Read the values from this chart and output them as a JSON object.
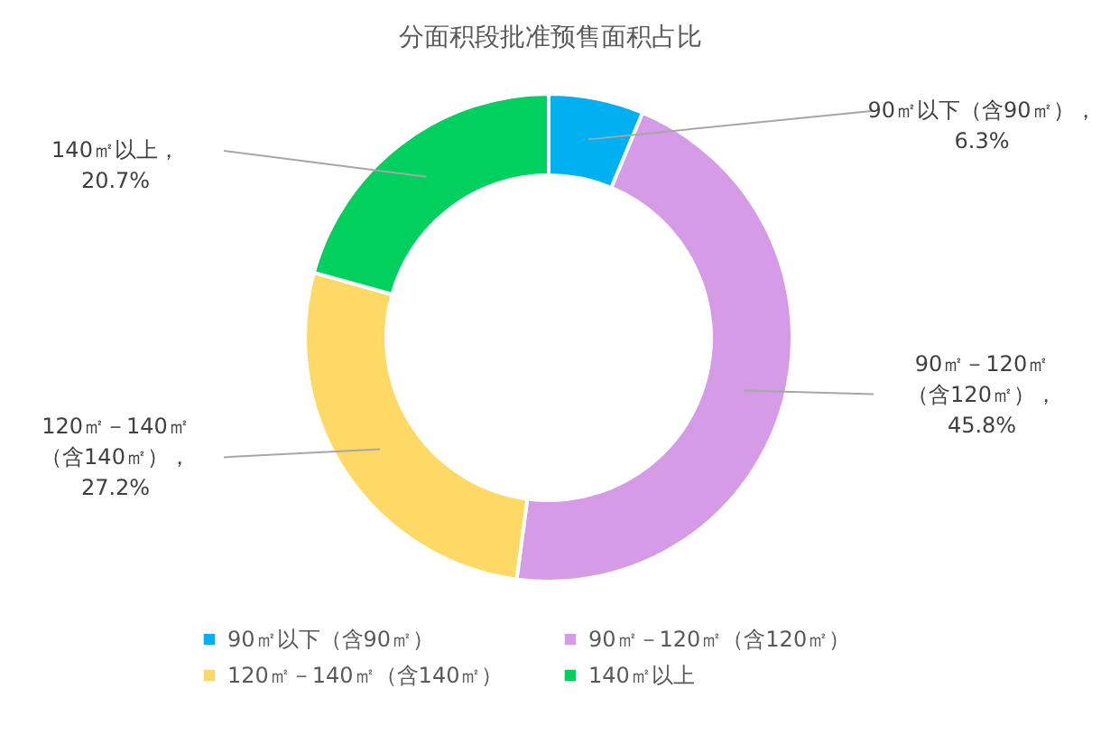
{
  "chart_data": {
    "type": "donut",
    "title": "分面积段批准预售面积占比",
    "categories": [
      "90㎡以下（含90㎡）",
      "90㎡－120㎡（含120㎡）",
      "120㎡－140㎡（含140㎡）",
      "140㎡以上"
    ],
    "values": [
      6.3,
      45.8,
      27.2,
      20.7
    ],
    "value_labels": [
      "90㎡以下（含90㎡），6.3%",
      "90㎡－120㎡（含120㎡），45.8%",
      "120㎡－140㎡（含140㎡），27.2%",
      "140㎡以上，20.7%"
    ],
    "colors": [
      "#00b0f0",
      "#d59be6",
      "#ffd966",
      "#00d05e"
    ],
    "legend": "bottom"
  }
}
